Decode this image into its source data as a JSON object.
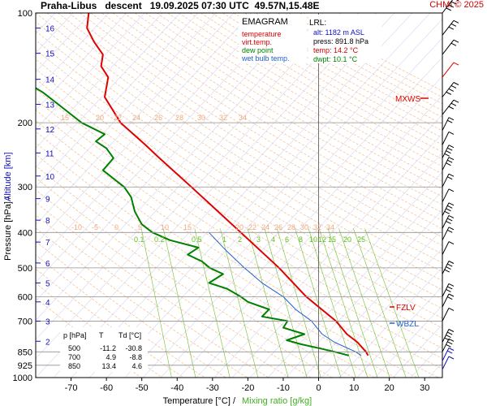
{
  "header": {
    "title": "Praha-Libus   descent   19.09.2025 07:30 UTC  49.57N,15.48E",
    "credit": "CHMI © 2025"
  },
  "legend": {
    "title": "EMAGRAM",
    "items": [
      {
        "label": "temperature",
        "color": "#e00000"
      },
      {
        "label": "virt.temp.",
        "color": "#e00000"
      },
      {
        "label": "dew point",
        "color": "#008000"
      },
      {
        "label": "wet bulb temp.",
        "color": "#2060d0"
      }
    ]
  },
  "lrl": {
    "title": "LRL:",
    "lines": [
      {
        "text": "alt:  1182 m ASL",
        "color": "#1010c0"
      },
      {
        "text": "press: 891.8 hPa",
        "color": "#000000"
      },
      {
        "text": "temp: 14.2 °C",
        "color": "#d00000"
      },
      {
        "text": "dwpt: 10.1 °C",
        "color": "#008000"
      }
    ]
  },
  "table": {
    "headers": [
      "p [hPa]",
      "T",
      "Td [°C]"
    ],
    "rows": [
      [
        "500",
        "-11.2",
        "-30.8"
      ],
      [
        "700",
        "4.9",
        "-8.8"
      ],
      [
        "850",
        "13.4",
        "4.6"
      ]
    ]
  },
  "levels": {
    "mxws": "MXWS",
    "fzlv": "FZLV",
    "wbzl": "WBZL"
  },
  "chart_data": {
    "type": "line",
    "xlabel": "Temperature [°C]  /",
    "xlabel2": "Mixing ratio [g/kg]",
    "ylabel": "Pressure [hPa]  /",
    "ylabel2": "Altitude [km]",
    "xlim": [
      -80,
      35
    ],
    "ylim": [
      1000,
      100
    ],
    "y_log": true,
    "grid": true,
    "x_ticks": [
      -70,
      -60,
      -50,
      -40,
      -30,
      -20,
      -10,
      0,
      10,
      20,
      30
    ],
    "p_ticks": [
      100,
      200,
      300,
      400,
      500,
      600,
      700,
      850,
      925,
      1000
    ],
    "km_ticks": [
      {
        "km": 2,
        "p": 795
      },
      {
        "km": 3,
        "p": 700
      },
      {
        "km": 4,
        "p": 620
      },
      {
        "km": 5,
        "p": 550
      },
      {
        "km": 6,
        "p": 485
      },
      {
        "km": 7,
        "p": 425
      },
      {
        "km": 8,
        "p": 370
      },
      {
        "km": 9,
        "p": 323
      },
      {
        "km": 10,
        "p": 280
      },
      {
        "km": 11,
        "p": 242
      },
      {
        "km": 12,
        "p": 208
      },
      {
        "km": 13,
        "p": 178
      },
      {
        "km": 14,
        "p": 152
      },
      {
        "km": 15,
        "p": 129
      },
      {
        "km": 16,
        "p": 110
      }
    ],
    "mixing_ratio_labels": [
      "0.1",
      "0.2",
      "0.5",
      "1",
      "2",
      "3",
      "4",
      "6",
      "8",
      "10",
      "12",
      "15",
      "20",
      "25"
    ],
    "theta_labels_upper": [
      "15",
      "20",
      "22",
      "24",
      "26",
      "28",
      "30",
      "32",
      "34"
    ],
    "theta_labels_lower": [
      "-10",
      "-5",
      "0",
      "5",
      "10",
      "15",
      "20",
      "22",
      "24",
      "26",
      "28",
      "30",
      "32",
      "34"
    ],
    "temperature": {
      "p": [
        870,
        850,
        800,
        760,
        700,
        600,
        500,
        400,
        300,
        250,
        230,
        200,
        170,
        150,
        140,
        130,
        120,
        110,
        100
      ],
      "t": [
        14.0,
        13.4,
        11.0,
        8.0,
        4.9,
        -3.5,
        -11.2,
        -22.0,
        -36.0,
        -45.0,
        -49.0,
        -56.0,
        -60.5,
        -59.5,
        -61.5,
        -61.0,
        -63.5,
        -65.5,
        -65.0
      ]
    },
    "dewpoint": {
      "p": [
        870,
        850,
        830,
        810,
        790,
        760,
        730,
        700,
        680,
        650,
        620,
        600,
        570,
        550,
        520,
        500,
        480,
        460,
        440,
        420,
        400,
        380,
        350,
        320,
        300,
        270,
        250,
        235,
        225,
        215,
        200,
        180,
        165,
        150,
        140
      ],
      "t": [
        8.5,
        4.6,
        0.0,
        -5.0,
        -9.0,
        -4.0,
        -10.0,
        -8.8,
        -16.0,
        -14.0,
        -20.0,
        -22.0,
        -26.0,
        -31.0,
        -27.0,
        -30.8,
        -33.0,
        -37.0,
        -34.0,
        -42.0,
        -47.0,
        -50.0,
        -52.0,
        -53.0,
        -55.0,
        -61.0,
        -58.0,
        -60.0,
        -63.0,
        -60.5,
        -67.0,
        -73.0,
        -78.0,
        -85.0,
        -90.0
      ]
    },
    "wetbulb": {
      "p": [
        870,
        850,
        800,
        760,
        700,
        650,
        600,
        550,
        500,
        450,
        400
      ],
      "t": [
        12.0,
        10.5,
        4.5,
        1.0,
        -2.0,
        -6.5,
        -10.0,
        -16.0,
        -21.0,
        -26.0,
        -31.0
      ]
    },
    "wind_levels_hpa": [
      950,
      900,
      850,
      800,
      700,
      640,
      600,
      520,
      460,
      420,
      390,
      360,
      330,
      300,
      270,
      250,
      230,
      210,
      190,
      170,
      150,
      130,
      115,
      100
    ]
  }
}
